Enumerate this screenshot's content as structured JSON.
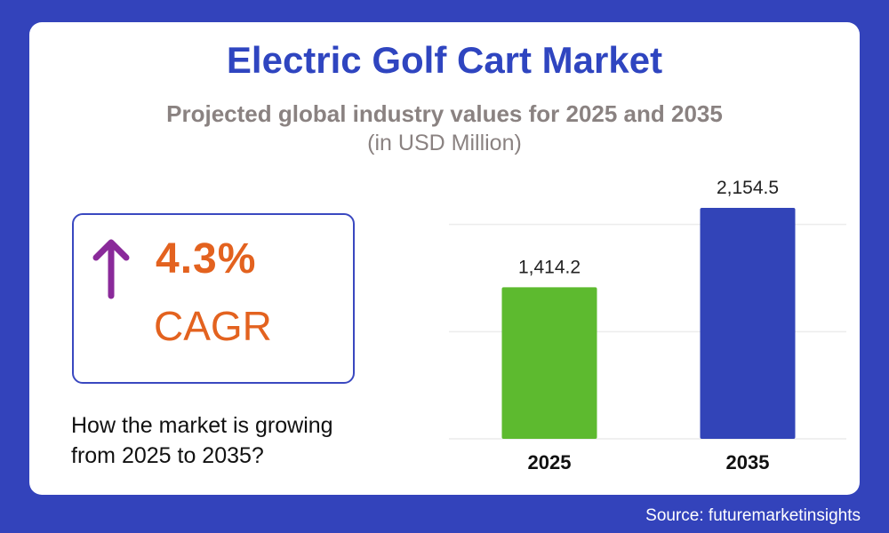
{
  "title": "Electric Golf Cart Market",
  "subtitle": "Projected global industry values for 2025 and 2035",
  "unit": "(in USD Million)",
  "cagr": {
    "value": "4.3%",
    "label": "CAGR",
    "icon": "arrow-up-icon",
    "arrow_color": "#8a2a9a",
    "text_color": "#e3621f"
  },
  "question": "How the market is growing from 2025 to 2035?",
  "source": "Source: futuremarketinsights",
  "colors": {
    "background": "#3343bb",
    "title": "#2f45c0"
  },
  "chart_data": {
    "type": "bar",
    "categories": [
      "2025",
      "2035"
    ],
    "values": [
      1414.2,
      2154.5
    ],
    "data_labels": [
      "1,414.2",
      "2,154.5"
    ],
    "colors": [
      "#5dba2f",
      "#3244b8"
    ],
    "ylim": [
      0,
      2154.5
    ],
    "gridlines": [
      0,
      1000,
      2000
    ],
    "grid": true,
    "xlabel": "",
    "ylabel": ""
  }
}
